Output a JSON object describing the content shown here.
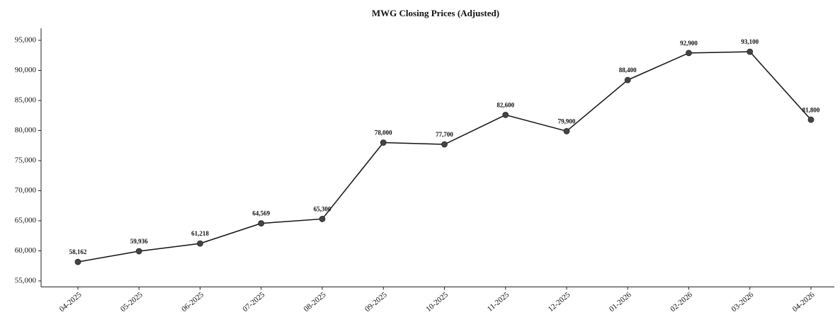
{
  "chart_data": {
    "type": "line",
    "title": "MWG Closing Prices (Adjusted)",
    "categories": [
      "04-2025",
      "05-2025",
      "06-2025",
      "07-2025",
      "08-2025",
      "09-2025",
      "10-2025",
      "11-2025",
      "12-2025",
      "01-2026",
      "02-2026",
      "03-2026",
      "04-2026"
    ],
    "values": [
      58162,
      59936,
      61218,
      64569,
      65300,
      78000,
      77700,
      82600,
      79900,
      88400,
      92900,
      93100,
      81800
    ],
    "value_labels": [
      "58,162",
      "59,936",
      "61,218",
      "64,569",
      "65,300",
      "78,000",
      "77,700",
      "82,600",
      "79,900",
      "88,400",
      "92,900",
      "93,100",
      "81,800"
    ],
    "color": "#111111",
    "marker_color": "#444444",
    "ylim": [
      54000,
      97000
    ],
    "yticks": [
      {
        "value": 55000,
        "label": "55,000"
      },
      {
        "value": 60000,
        "label": "60,000"
      },
      {
        "value": 65000,
        "label": "65,000"
      },
      {
        "value": 70000,
        "label": "70,000"
      },
      {
        "value": 75000,
        "label": "75,000"
      },
      {
        "value": 80000,
        "label": "80,000"
      },
      {
        "value": 85000,
        "label": "85,000"
      },
      {
        "value": 90000,
        "label": "90,000"
      },
      {
        "value": 95000,
        "label": "95,000"
      }
    ],
    "grid": false
  }
}
